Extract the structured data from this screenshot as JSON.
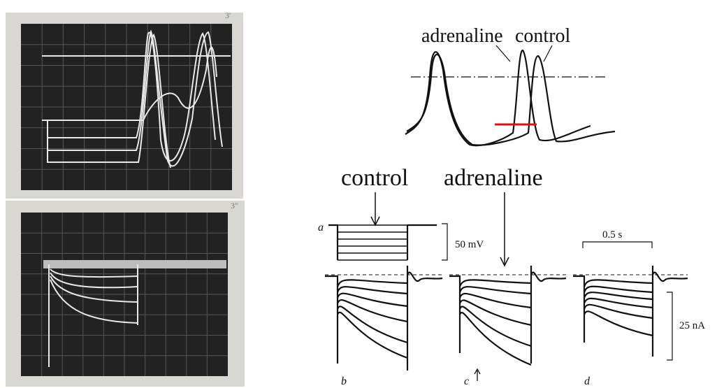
{
  "photo_labels": [
    "3'",
    "3''"
  ],
  "top_panel": {
    "labels": [
      "adrenaline",
      "control"
    ]
  },
  "bottom_panel": {
    "column_labels": [
      "control",
      "adrenaline"
    ],
    "voltage_trace_label": "a",
    "voltage_scale": "50 mV",
    "time_scale": "0.5 s",
    "current_scale": "25 nA",
    "trace_labels": [
      "b",
      "c",
      "d"
    ]
  }
}
